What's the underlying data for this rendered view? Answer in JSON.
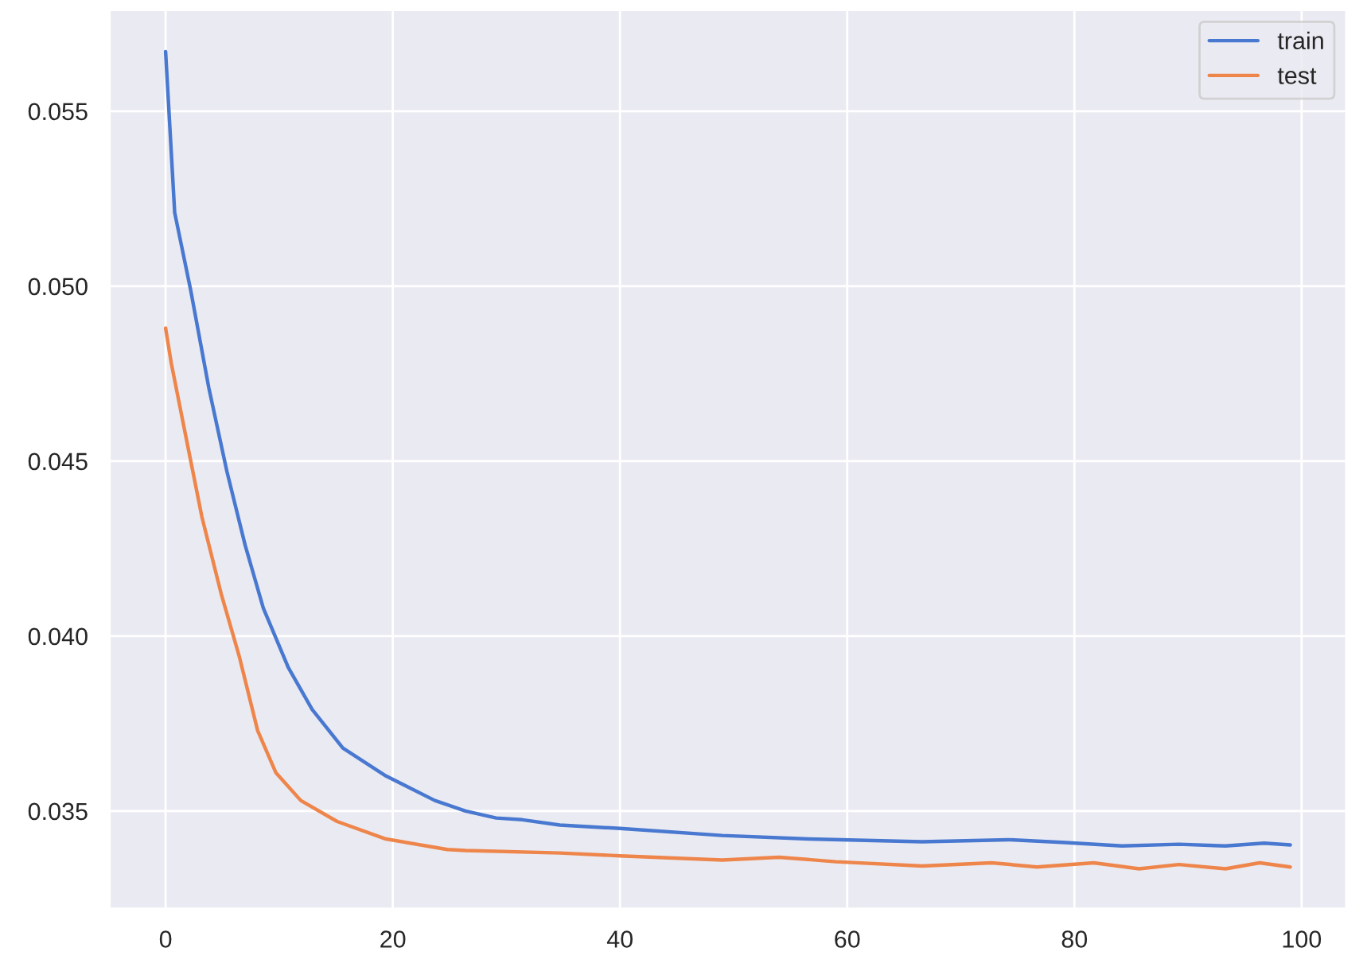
{
  "chart_data": {
    "type": "line",
    "xlim": [
      -4.95,
      103.95
    ],
    "ylim": [
      0.0322,
      0.0579
    ],
    "xticks": [
      0,
      20,
      40,
      60,
      80,
      100
    ],
    "yticks": [
      {
        "value": 0.035,
        "label": "0.035"
      },
      {
        "value": 0.04,
        "label": "0.040"
      },
      {
        "value": 0.045,
        "label": "0.045"
      },
      {
        "value": 0.05,
        "label": "0.050"
      },
      {
        "value": 0.055,
        "label": "0.055"
      }
    ],
    "grid": true,
    "legend": "top right",
    "series": [
      {
        "name": "train",
        "color": "#4878d0",
        "x": [
          0,
          0.8,
          2.2,
          3.8,
          5.4,
          7,
          8.6,
          10.8,
          12.9,
          15.6,
          19.4,
          23.7,
          26.4,
          29.1,
          31.4,
          34.7,
          40,
          49,
          56.6,
          66.6,
          74.2,
          79.2,
          84.2,
          89.2,
          93.3,
          96.7,
          99
        ],
        "values": [
          0.0567,
          0.0521,
          0.0499,
          0.0471,
          0.0447,
          0.0426,
          0.0408,
          0.0391,
          0.0379,
          0.0368,
          0.036,
          0.0353,
          0.035,
          0.0348,
          0.03475,
          0.0346,
          0.0345,
          0.0343,
          0.0342,
          0.03412,
          0.03418,
          0.0341,
          0.034,
          0.03405,
          0.034,
          0.03408,
          0.03403
        ]
      },
      {
        "name": "test",
        "color": "#ee854a",
        "x": [
          0,
          0.5,
          1.6,
          3.2,
          4.9,
          6.5,
          8.1,
          9.7,
          11.9,
          15.1,
          19.4,
          24.8,
          26.4,
          34.7,
          40,
          49,
          54,
          59,
          66.6,
          72.7,
          76.7,
          81.7,
          85.7,
          89.2,
          93.3,
          96.3,
          99
        ],
        "values": [
          0.0488,
          0.0478,
          0.046,
          0.0434,
          0.0412,
          0.0394,
          0.0373,
          0.0361,
          0.0353,
          0.0347,
          0.0342,
          0.0339,
          0.03387,
          0.0338,
          0.03372,
          0.0336,
          0.03368,
          0.03355,
          0.03343,
          0.03352,
          0.0334,
          0.03352,
          0.03335,
          0.03347,
          0.03335,
          0.03352,
          0.0334
        ]
      }
    ]
  }
}
